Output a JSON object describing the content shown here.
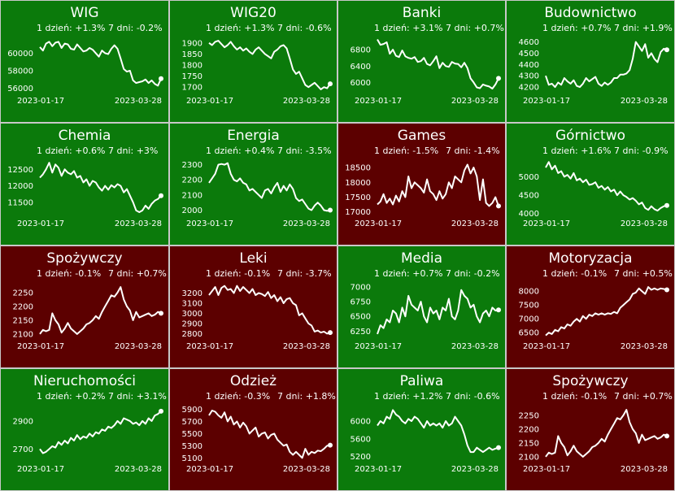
{
  "colors": {
    "up": "#0b7a0b",
    "down": "#5c0000",
    "line": "#ffffff",
    "border": "#c8c8c8"
  },
  "chart_data": [
    {
      "type": "line",
      "title": "WIG",
      "change_1d": "1 dzień: +1.3%",
      "change_7d": "7 dni: -0.2%",
      "trend": "up",
      "x_start": "2023-01-17",
      "x_end": "2023-03-28",
      "yticks": [
        56000,
        58000,
        60000
      ],
      "ylim": [
        55500,
        61800
      ],
      "values": [
        60700,
        60300,
        61100,
        61300,
        60800,
        61200,
        61300,
        60600,
        61100,
        61000,
        60500,
        60400,
        61000,
        60600,
        60200,
        60300,
        60600,
        60400,
        60000,
        59600,
        60300,
        60000,
        59900,
        60500,
        60900,
        60500,
        59400,
        58200,
        57900,
        58000,
        56900,
        56600,
        56700,
        56800,
        57000,
        56600,
        56900,
        56500,
        56300,
        57100
      ]
    },
    {
      "type": "line",
      "title": "WIG20",
      "change_1d": "1 dzień: +1.3%",
      "change_7d": "7 dni: -0.6%",
      "trend": "up",
      "x_start": "2023-01-17",
      "x_end": "2023-03-28",
      "yticks": [
        1700,
        1750,
        1800,
        1850,
        1900
      ],
      "ylim": [
        1675,
        1925
      ],
      "values": [
        1900,
        1890,
        1905,
        1910,
        1895,
        1880,
        1890,
        1905,
        1885,
        1870,
        1880,
        1865,
        1875,
        1860,
        1850,
        1870,
        1880,
        1865,
        1850,
        1840,
        1830,
        1860,
        1870,
        1885,
        1890,
        1875,
        1830,
        1780,
        1760,
        1770,
        1740,
        1710,
        1700,
        1710,
        1720,
        1705,
        1690,
        1700,
        1695,
        1715
      ]
    },
    {
      "type": "line",
      "title": "Banki",
      "change_1d": "1 dzień: +3.1%",
      "change_7d": "7 dni: +0.7%",
      "trend": "up",
      "x_start": "2023-01-17",
      "x_end": "2023-03-28",
      "yticks": [
        6000,
        6400,
        6800
      ],
      "ylim": [
        5750,
        7100
      ],
      "values": [
        7050,
        6920,
        6940,
        6980,
        6700,
        6800,
        6650,
        6620,
        6780,
        6640,
        6600,
        6580,
        6620,
        6500,
        6520,
        6600,
        6450,
        6420,
        6520,
        6640,
        6350,
        6480,
        6400,
        6380,
        6500,
        6460,
        6450,
        6370,
        6480,
        6350,
        6100,
        6000,
        5880,
        5860,
        5950,
        5920,
        5900,
        5850,
        5950,
        6100
      ]
    },
    {
      "type": "line",
      "title": "Budownictwo",
      "change_1d": "1 dzień: +0.7%",
      "change_7d": "7 dni: +1.9%",
      "trend": "up",
      "x_start": "2023-01-17",
      "x_end": "2023-03-28",
      "yticks": [
        4200,
        4300,
        4400,
        4500,
        4600
      ],
      "ylim": [
        4150,
        4640
      ],
      "values": [
        4300,
        4220,
        4230,
        4200,
        4240,
        4220,
        4280,
        4250,
        4230,
        4260,
        4210,
        4200,
        4230,
        4280,
        4250,
        4270,
        4290,
        4230,
        4210,
        4240,
        4220,
        4240,
        4280,
        4280,
        4310,
        4310,
        4320,
        4350,
        4450,
        4600,
        4560,
        4520,
        4580,
        4460,
        4500,
        4450,
        4420,
        4510,
        4540,
        4530
      ]
    },
    {
      "type": "line",
      "title": "Chemia",
      "change_1d": "1 dzień: +0.6%",
      "change_7d": "7 dni: +3%",
      "trend": "up",
      "x_start": "2023-01-17",
      "x_end": "2023-03-28",
      "yticks": [
        11500,
        12000,
        12500
      ],
      "ylim": [
        11100,
        12780
      ],
      "values": [
        12250,
        12350,
        12500,
        12700,
        12400,
        12650,
        12550,
        12300,
        12500,
        12400,
        12350,
        12450,
        12250,
        12300,
        12100,
        12200,
        12000,
        12150,
        12100,
        11950,
        11850,
        12000,
        11880,
        12020,
        11950,
        12050,
        12000,
        11800,
        11900,
        11700,
        11500,
        11250,
        11200,
        11250,
        11400,
        11300,
        11450,
        11550,
        11600,
        11700
      ]
    },
    {
      "type": "line",
      "title": "Energia",
      "change_1d": "1 dzień: +0.4%",
      "change_7d": "7 dni: -3.5%",
      "trend": "up",
      "x_start": "2023-01-17",
      "x_end": "2023-03-28",
      "yticks": [
        2000,
        2100,
        2200,
        2300
      ],
      "ylim": [
        1965,
        2330
      ],
      "values": [
        2180,
        2210,
        2240,
        2300,
        2305,
        2300,
        2310,
        2240,
        2200,
        2190,
        2210,
        2180,
        2170,
        2130,
        2140,
        2120,
        2100,
        2080,
        2130,
        2140,
        2110,
        2150,
        2180,
        2120,
        2160,
        2130,
        2170,
        2140,
        2080,
        2060,
        2070,
        2040,
        2010,
        2000,
        2030,
        2050,
        2030,
        2000,
        1995,
        2000
      ]
    },
    {
      "type": "line",
      "title": "Games",
      "change_1d": "1 dzień: -1.5%",
      "change_7d": "7 dni: -1.4%",
      "trend": "down",
      "x_start": "2023-01-17",
      "x_end": "2023-03-28",
      "yticks": [
        17000,
        17500,
        18000,
        18500
      ],
      "ylim": [
        16880,
        18750
      ],
      "values": [
        17250,
        17350,
        17600,
        17300,
        17450,
        17250,
        17550,
        17350,
        17700,
        17500,
        18200,
        17800,
        18000,
        17900,
        17800,
        17650,
        18100,
        17700,
        17600,
        17400,
        17700,
        17450,
        17600,
        18000,
        17800,
        18200,
        18100,
        18000,
        18400,
        18600,
        18300,
        18500,
        18200,
        17400,
        18100,
        17300,
        17200,
        17300,
        17500,
        17200
      ]
    },
    {
      "type": "line",
      "title": "Górnictwo",
      "change_1d": "1 dzień: +1.6%",
      "change_7d": "7 dni: -0.9%",
      "trend": "up",
      "x_start": "2023-01-17",
      "x_end": "2023-03-28",
      "yticks": [
        4000,
        4500,
        5000
      ],
      "ylim": [
        3950,
        5450
      ],
      "values": [
        5250,
        5400,
        5200,
        5300,
        5100,
        5150,
        5000,
        5050,
        4950,
        5100,
        4900,
        4950,
        4850,
        4920,
        4780,
        4800,
        4850,
        4700,
        4750,
        4650,
        4720,
        4600,
        4650,
        4500,
        4600,
        4500,
        4450,
        4380,
        4420,
        4350,
        4250,
        4300,
        4150,
        4100,
        4200,
        4120,
        4080,
        4150,
        4200,
        4220
      ]
    },
    {
      "type": "line",
      "title": "Spożywczy",
      "change_1d": "1 dzień: -0.1%",
      "change_7d": "7 dni: +0.7%",
      "trend": "down",
      "x_start": "2023-01-17",
      "x_end": "2023-03-28",
      "yticks": [
        2100,
        2150,
        2200,
        2250
      ],
      "ylim": [
        2085,
        2285
      ],
      "values": [
        2100,
        2115,
        2110,
        2115,
        2175,
        2150,
        2135,
        2105,
        2120,
        2140,
        2120,
        2110,
        2100,
        2110,
        2120,
        2135,
        2140,
        2150,
        2165,
        2155,
        2180,
        2200,
        2220,
        2240,
        2235,
        2250,
        2270,
        2225,
        2200,
        2185,
        2150,
        2180,
        2160,
        2165,
        2170,
        2175,
        2165,
        2170,
        2180,
        2175
      ]
    },
    {
      "type": "line",
      "title": "Leki",
      "change_1d": "1 dzień: -0.1%",
      "change_7d": "7 dni: -3.7%",
      "trend": "down",
      "x_start": "2023-01-17",
      "x_end": "2023-03-28",
      "yticks": [
        2800,
        2900,
        3000,
        3100,
        3200
      ],
      "ylim": [
        2755,
        3300
      ],
      "values": [
        3180,
        3220,
        3260,
        3180,
        3250,
        3270,
        3230,
        3240,
        3200,
        3270,
        3220,
        3260,
        3230,
        3200,
        3240,
        3180,
        3200,
        3190,
        3170,
        3210,
        3150,
        3180,
        3120,
        3160,
        3100,
        3140,
        3150,
        3100,
        3080,
        2980,
        3000,
        2950,
        2900,
        2880,
        2820,
        2830,
        2810,
        2820,
        2800,
        2810
      ]
    },
    {
      "type": "line",
      "title": "Media",
      "change_1d": "1 dzień: +0.7%",
      "change_7d": "7 dni: -0.2%",
      "trend": "up",
      "x_start": "2023-01-17",
      "x_end": "2023-03-28",
      "yticks": [
        6250,
        6500,
        6750,
        7000
      ],
      "ylim": [
        6130,
        7070
      ],
      "values": [
        6200,
        6350,
        6300,
        6450,
        6400,
        6600,
        6550,
        6400,
        6650,
        6500,
        6850,
        6700,
        6650,
        6600,
        6750,
        6500,
        6400,
        6650,
        6550,
        6600,
        6450,
        6650,
        6600,
        6800,
        6500,
        6450,
        6600,
        6950,
        6850,
        6800,
        6650,
        6700,
        6500,
        6400,
        6550,
        6600,
        6500,
        6650,
        6600,
        6610
      ]
    },
    {
      "type": "line",
      "title": "Motoryzacja",
      "change_1d": "1 dzień: -0.1%",
      "change_7d": "7 dni: +0.5%",
      "trend": "down",
      "x_start": "2023-01-17",
      "x_end": "2023-03-28",
      "yticks": [
        6500,
        7000,
        7500,
        8000
      ],
      "ylim": [
        6300,
        8300
      ],
      "values": [
        6400,
        6500,
        6450,
        6600,
        6550,
        6700,
        6650,
        6800,
        6750,
        6900,
        7000,
        6900,
        7100,
        7000,
        7150,
        7100,
        7200,
        7150,
        7200,
        7150,
        7200,
        7180,
        7250,
        7200,
        7400,
        7500,
        7600,
        7700,
        7900,
        7950,
        8100,
        8000,
        7900,
        8150,
        8050,
        8100,
        8050,
        8100,
        8080,
        8050
      ]
    },
    {
      "type": "line",
      "title": "Nieruchomości",
      "change_1d": "1 dzień: +0.2%",
      "change_7d": "7 dni: +3.1%",
      "trend": "up",
      "x_start": "2023-01-17",
      "x_end": "2023-03-28",
      "yticks": [
        2700,
        2900
      ],
      "ylim": [
        2615,
        3010
      ],
      "values": [
        2700,
        2670,
        2680,
        2700,
        2720,
        2710,
        2750,
        2730,
        2760,
        2740,
        2780,
        2760,
        2800,
        2770,
        2790,
        2780,
        2810,
        2790,
        2820,
        2810,
        2840,
        2830,
        2860,
        2850,
        2870,
        2900,
        2880,
        2920,
        2910,
        2900,
        2880,
        2890,
        2870,
        2900,
        2880,
        2920,
        2900,
        2940,
        2950,
        2970
      ]
    },
    {
      "type": "line",
      "title": "Odzież",
      "change_1d": "1 dzień: -0.3%",
      "change_7d": "7 dni: +1.8%",
      "trend": "down",
      "x_start": "2023-01-17",
      "x_end": "2023-03-28",
      "yticks": [
        5100,
        5300,
        5500,
        5700,
        5900
      ],
      "ylim": [
        5050,
        5960
      ],
      "values": [
        5800,
        5880,
        5860,
        5800,
        5760,
        5850,
        5700,
        5780,
        5650,
        5700,
        5600,
        5680,
        5620,
        5500,
        5550,
        5600,
        5450,
        5500,
        5520,
        5420,
        5480,
        5500,
        5400,
        5350,
        5300,
        5320,
        5200,
        5150,
        5200,
        5150,
        5100,
        5250,
        5150,
        5200,
        5180,
        5220,
        5210,
        5250,
        5300,
        5310
      ]
    },
    {
      "type": "line",
      "title": "Paliwa",
      "change_1d": "1 dzień: +1.2%",
      "change_7d": "7 dni: -0.6%",
      "trend": "up",
      "x_start": "2023-01-17",
      "x_end": "2023-03-28",
      "yticks": [
        5200,
        5600,
        6000
      ],
      "ylim": [
        5100,
        6350
      ],
      "values": [
        5900,
        6000,
        5950,
        6100,
        6050,
        6250,
        6150,
        6100,
        6000,
        5950,
        6050,
        6000,
        6100,
        6050,
        5950,
        5850,
        6000,
        5900,
        5950,
        5900,
        5950,
        5850,
        6000,
        5900,
        5950,
        6100,
        6000,
        5900,
        5700,
        5450,
        5300,
        5300,
        5400,
        5350,
        5300,
        5350,
        5400,
        5350,
        5380,
        5400
      ]
    },
    {
      "type": "line",
      "title": "Spożywczy",
      "change_1d": "1 dzień: -0.1%",
      "change_7d": "7 dni: +0.7%",
      "trend": "down",
      "x_start": "2023-01-17",
      "x_end": "2023-03-28",
      "yticks": [
        2100,
        2150,
        2200,
        2250
      ],
      "ylim": [
        2085,
        2285
      ],
      "values": [
        2100,
        2115,
        2110,
        2115,
        2175,
        2150,
        2135,
        2105,
        2120,
        2140,
        2120,
        2110,
        2100,
        2110,
        2120,
        2135,
        2140,
        2150,
        2165,
        2155,
        2180,
        2200,
        2220,
        2240,
        2235,
        2250,
        2270,
        2225,
        2200,
        2185,
        2150,
        2180,
        2160,
        2165,
        2170,
        2175,
        2165,
        2170,
        2180,
        2175
      ]
    }
  ]
}
